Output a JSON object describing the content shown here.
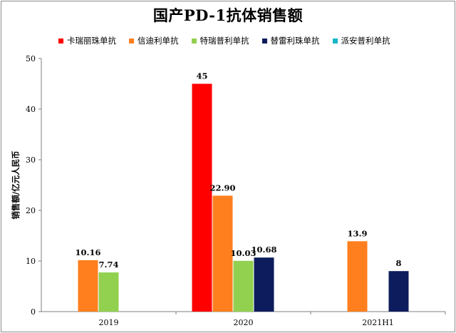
{
  "chart_data": {
    "type": "bar",
    "title": "国产PD-1抗体销售额",
    "xlabel": "",
    "ylabel": "销售额/亿元人民币",
    "ylim": [
      0,
      50
    ],
    "yticks": [
      0,
      10,
      20,
      30,
      40,
      50
    ],
    "grid": false,
    "legend_position": "top",
    "categories": [
      "2019",
      "2020",
      "2021H1"
    ],
    "series": [
      {
        "name": "卡瑞丽珠单抗",
        "color": "#ff0000",
        "values": [
          null,
          45,
          null
        ],
        "labels": [
          "",
          "45",
          ""
        ]
      },
      {
        "name": "信迪利单抗",
        "color": "#ff7f1e",
        "values": [
          10.16,
          22.9,
          13.9
        ],
        "labels": [
          "10.16",
          "22.90",
          "13.9"
        ]
      },
      {
        "name": "特瑞普利单抗",
        "color": "#92d050",
        "values": [
          7.74,
          10.03,
          null
        ],
        "labels": [
          "7.74",
          "10.03",
          ""
        ]
      },
      {
        "name": "替雷利珠单抗",
        "color": "#0c1c5c",
        "values": [
          null,
          10.68,
          8
        ],
        "labels": [
          "",
          "10.68",
          "8"
        ]
      },
      {
        "name": "派安普利单抗",
        "color": "#17b7c8",
        "values": [
          null,
          null,
          null
        ],
        "labels": [
          "",
          "",
          ""
        ]
      }
    ]
  }
}
